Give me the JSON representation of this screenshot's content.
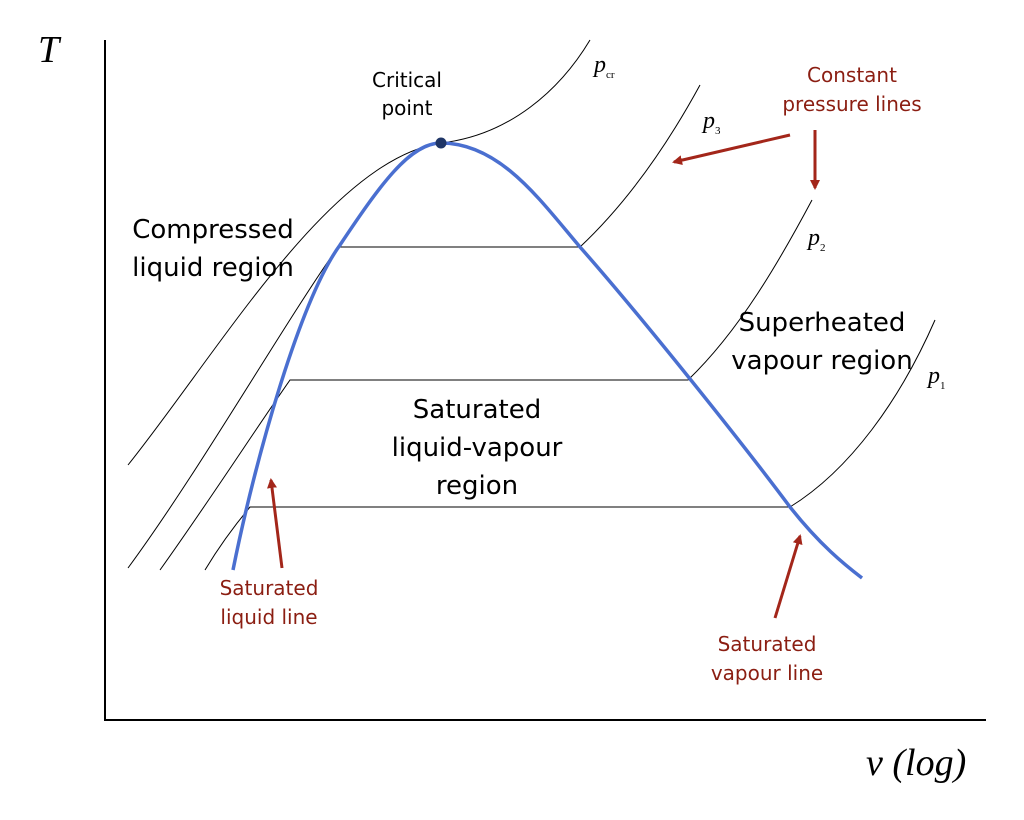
{
  "axes": {
    "y_label": "T",
    "x_label": "v (log)"
  },
  "critical_point": {
    "lines": [
      "Critical",
      "point"
    ]
  },
  "regions": [
    {
      "lines": [
        "Compressed",
        "liquid region"
      ]
    },
    {
      "lines": [
        "Saturated",
        "liquid-vapour",
        "region"
      ]
    },
    {
      "lines": [
        "Superheated",
        "vapour region"
      ]
    }
  ],
  "pressure_lines": [
    {
      "symbol": "p",
      "subscript": "cr"
    },
    {
      "symbol": "p",
      "subscript": "3"
    },
    {
      "symbol": "p",
      "subscript": "2"
    },
    {
      "symbol": "p",
      "subscript": "1"
    }
  ],
  "annotations": [
    {
      "lines": [
        "Constant",
        "pressure lines"
      ]
    },
    {
      "lines": [
        "Saturated",
        "liquid line"
      ]
    },
    {
      "lines": [
        "Saturated",
        "vapour line"
      ]
    }
  ]
}
